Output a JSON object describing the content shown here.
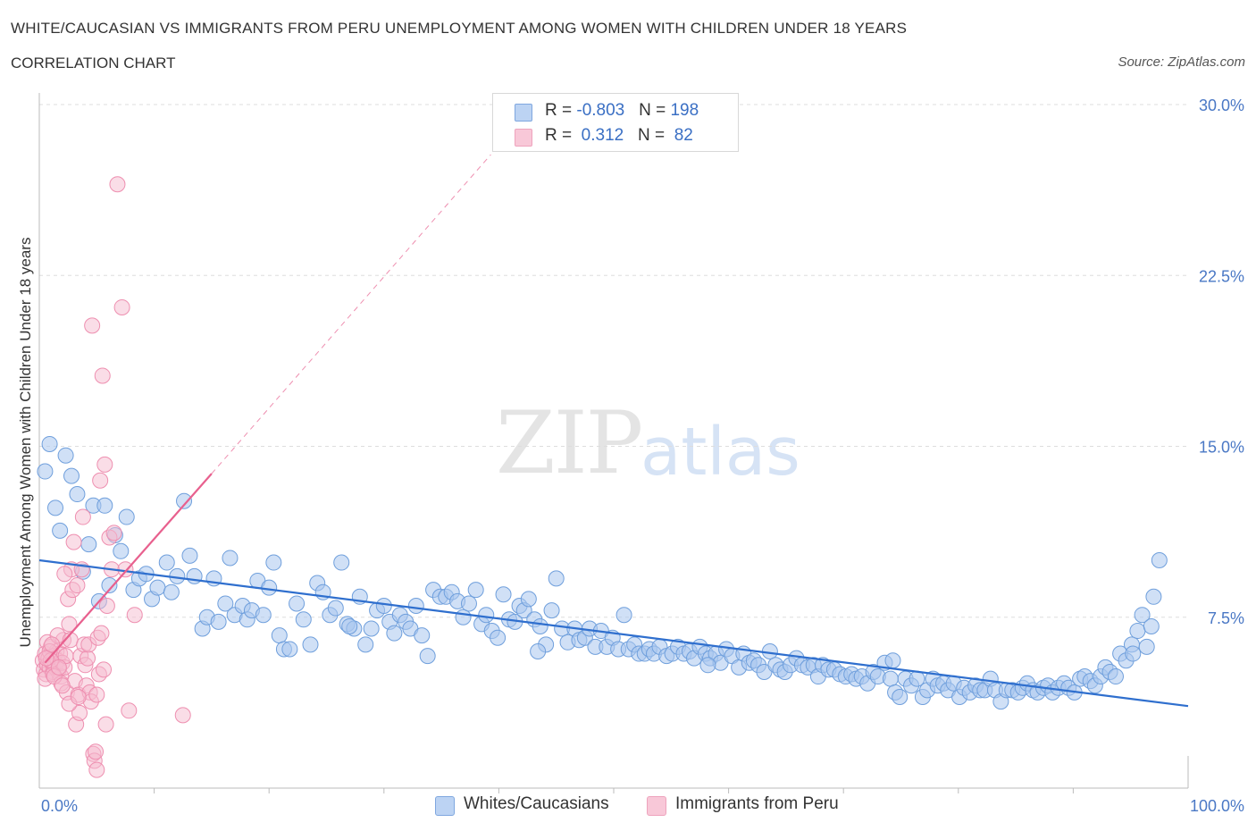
{
  "header": {
    "title": "WHITE/CAUCASIAN VS IMMIGRANTS FROM PERU UNEMPLOYMENT AMONG WOMEN WITH CHILDREN UNDER 18 YEARS",
    "subtitle": "CORRELATION CHART",
    "source": "Source: ZipAtlas.com"
  },
  "legend_box": {
    "rows": [
      {
        "r_label": "R = ",
        "r_value": "-0.803",
        "n_label": "N = ",
        "n_value": "198"
      },
      {
        "r_label": "R = ",
        "r_value": " 0.312",
        "n_label": "N = ",
        "n_value": " 82"
      }
    ]
  },
  "bottom_legend": {
    "series1": "Whites/Caucasians",
    "series2": "Immigrants from Peru"
  },
  "watermark": {
    "part1": "ZIP",
    "part2": "atlas"
  },
  "colors": {
    "blue_fill": "#a9c6ee",
    "blue_stroke": "#6f9fdc",
    "blue_line": "#2f6fce",
    "pink_fill": "#f6bcd0",
    "pink_stroke": "#ee8fb0",
    "pink_line": "#e8608e",
    "grid": "#dddddd",
    "tick_text": "#4a78c5"
  },
  "chart_data": {
    "type": "scatter",
    "title": "WHITE/CAUCASIAN VS IMMIGRANTS FROM PERU UNEMPLOYMENT AMONG WOMEN WITH CHILDREN UNDER 18 YEARS",
    "xlabel": "",
    "ylabel": "Unemployment Among Women with Children Under 18 years",
    "xlim": [
      0,
      100
    ],
    "ylim": [
      0,
      30
    ],
    "x_tick_labels": [
      "0.0%",
      "100.0%"
    ],
    "y_ticks": [
      7.5,
      15.0,
      22.5,
      30.0
    ],
    "y_tick_labels": [
      "7.5%",
      "15.0%",
      "22.5%",
      "30.0%"
    ],
    "grid": true,
    "legend_placement": "bottom-center",
    "series": [
      {
        "name": "Whites/Caucasians",
        "R": -0.803,
        "N": 198,
        "trend": {
          "x": [
            0,
            100
          ],
          "y": [
            10.0,
            3.6
          ]
        },
        "points": [
          [
            0.5,
            13.9
          ],
          [
            0.9,
            15.1
          ],
          [
            1.4,
            12.3
          ],
          [
            1.8,
            11.3
          ],
          [
            2.3,
            14.6
          ],
          [
            2.8,
            13.7
          ],
          [
            3.3,
            12.9
          ],
          [
            3.8,
            9.5
          ],
          [
            4.3,
            10.7
          ],
          [
            4.7,
            12.4
          ],
          [
            5.2,
            8.2
          ],
          [
            5.7,
            12.4
          ],
          [
            6.1,
            8.9
          ],
          [
            6.6,
            11.1
          ],
          [
            7.1,
            10.4
          ],
          [
            7.6,
            11.9
          ],
          [
            8.2,
            8.7
          ],
          [
            8.7,
            9.2
          ],
          [
            9.3,
            9.4
          ],
          [
            9.8,
            8.3
          ],
          [
            10.3,
            8.8
          ],
          [
            11.1,
            9.9
          ],
          [
            11.5,
            8.6
          ],
          [
            12.0,
            9.3
          ],
          [
            12.6,
            12.6
          ],
          [
            13.1,
            10.2
          ],
          [
            13.5,
            9.3
          ],
          [
            14.2,
            7.0
          ],
          [
            14.6,
            7.5
          ],
          [
            15.2,
            9.2
          ],
          [
            15.6,
            7.3
          ],
          [
            16.2,
            8.1
          ],
          [
            16.6,
            10.1
          ],
          [
            17.0,
            7.6
          ],
          [
            17.7,
            8.0
          ],
          [
            18.1,
            7.4
          ],
          [
            18.5,
            7.8
          ],
          [
            19.0,
            9.1
          ],
          [
            19.5,
            7.6
          ],
          [
            20.0,
            8.8
          ],
          [
            20.4,
            9.9
          ],
          [
            20.9,
            6.7
          ],
          [
            21.3,
            6.1
          ],
          [
            21.8,
            6.1
          ],
          [
            22.4,
            8.1
          ],
          [
            23.0,
            7.4
          ],
          [
            23.6,
            6.3
          ],
          [
            24.2,
            9.0
          ],
          [
            24.7,
            8.6
          ],
          [
            25.3,
            7.6
          ],
          [
            25.8,
            7.9
          ],
          [
            26.3,
            9.9
          ],
          [
            26.8,
            7.2
          ],
          [
            27.4,
            7.0
          ],
          [
            27.9,
            8.4
          ],
          [
            28.4,
            6.3
          ],
          [
            28.9,
            7.0
          ],
          [
            29.4,
            7.8
          ],
          [
            30.0,
            8.0
          ],
          [
            30.5,
            7.3
          ],
          [
            30.9,
            6.8
          ],
          [
            31.4,
            7.6
          ],
          [
            31.9,
            7.3
          ],
          [
            32.3,
            7.0
          ],
          [
            32.8,
            8.0
          ],
          [
            33.3,
            6.7
          ],
          [
            33.8,
            5.8
          ],
          [
            34.3,
            8.7
          ],
          [
            34.9,
            8.4
          ],
          [
            35.4,
            8.4
          ],
          [
            35.9,
            8.6
          ],
          [
            36.4,
            8.2
          ],
          [
            36.9,
            7.5
          ],
          [
            37.4,
            8.1
          ],
          [
            38.0,
            8.7
          ],
          [
            38.5,
            7.2
          ],
          [
            38.9,
            7.6
          ],
          [
            39.4,
            6.9
          ],
          [
            39.9,
            6.6
          ],
          [
            40.4,
            8.5
          ],
          [
            40.9,
            7.4
          ],
          [
            41.4,
            7.3
          ],
          [
            41.8,
            8.0
          ],
          [
            42.2,
            7.8
          ],
          [
            42.6,
            8.3
          ],
          [
            43.1,
            7.4
          ],
          [
            43.6,
            7.1
          ],
          [
            44.1,
            6.3
          ],
          [
            44.6,
            7.8
          ],
          [
            45.0,
            9.2
          ],
          [
            45.5,
            7.0
          ],
          [
            46.0,
            6.4
          ],
          [
            46.6,
            7.0
          ],
          [
            47.0,
            6.5
          ],
          [
            47.5,
            6.6
          ],
          [
            47.9,
            7.0
          ],
          [
            48.4,
            6.2
          ],
          [
            48.9,
            6.9
          ],
          [
            49.4,
            6.2
          ],
          [
            49.9,
            6.6
          ],
          [
            50.4,
            6.1
          ],
          [
            50.9,
            7.6
          ],
          [
            51.3,
            6.1
          ],
          [
            51.8,
            6.3
          ],
          [
            52.2,
            5.9
          ],
          [
            52.7,
            5.9
          ],
          [
            53.1,
            6.1
          ],
          [
            53.5,
            5.9
          ],
          [
            54.0,
            6.2
          ],
          [
            54.6,
            5.8
          ],
          [
            55.1,
            5.9
          ],
          [
            55.6,
            6.2
          ],
          [
            56.1,
            5.9
          ],
          [
            56.6,
            6.0
          ],
          [
            57.0,
            5.7
          ],
          [
            57.5,
            6.2
          ],
          [
            58.0,
            5.9
          ],
          [
            58.4,
            5.7
          ],
          [
            58.9,
            5.9
          ],
          [
            59.3,
            5.5
          ],
          [
            59.8,
            6.1
          ],
          [
            60.3,
            5.8
          ],
          [
            60.9,
            5.3
          ],
          [
            61.3,
            5.9
          ],
          [
            61.8,
            5.5
          ],
          [
            62.2,
            5.6
          ],
          [
            62.6,
            5.4
          ],
          [
            63.1,
            5.1
          ],
          [
            63.6,
            6.0
          ],
          [
            64.1,
            5.4
          ],
          [
            64.5,
            5.2
          ],
          [
            64.9,
            5.1
          ],
          [
            65.4,
            5.4
          ],
          [
            65.9,
            5.7
          ],
          [
            66.4,
            5.4
          ],
          [
            66.9,
            5.3
          ],
          [
            67.4,
            5.4
          ],
          [
            67.8,
            4.9
          ],
          [
            68.2,
            5.4
          ],
          [
            68.7,
            5.2
          ],
          [
            69.2,
            5.2
          ],
          [
            69.7,
            5.0
          ],
          [
            70.2,
            4.9
          ],
          [
            70.7,
            5.0
          ],
          [
            71.1,
            4.8
          ],
          [
            71.6,
            4.9
          ],
          [
            72.1,
            4.6
          ],
          [
            72.6,
            5.1
          ],
          [
            73.0,
            4.9
          ],
          [
            73.6,
            5.5
          ],
          [
            74.1,
            4.8
          ],
          [
            74.5,
            4.2
          ],
          [
            74.9,
            4.0
          ],
          [
            75.4,
            4.8
          ],
          [
            75.9,
            4.5
          ],
          [
            76.4,
            4.8
          ],
          [
            76.9,
            4.0
          ],
          [
            77.3,
            4.3
          ],
          [
            77.8,
            4.8
          ],
          [
            78.2,
            4.5
          ],
          [
            78.7,
            4.6
          ],
          [
            79.1,
            4.3
          ],
          [
            79.6,
            4.6
          ],
          [
            80.1,
            4.0
          ],
          [
            80.5,
            4.4
          ],
          [
            81.0,
            4.2
          ],
          [
            81.5,
            4.5
          ],
          [
            81.9,
            4.3
          ],
          [
            82.3,
            4.3
          ],
          [
            82.8,
            4.8
          ],
          [
            83.2,
            4.3
          ],
          [
            83.7,
            3.8
          ],
          [
            84.2,
            4.3
          ],
          [
            84.7,
            4.3
          ],
          [
            85.2,
            4.2
          ],
          [
            85.6,
            4.4
          ],
          [
            86.0,
            4.6
          ],
          [
            86.5,
            4.3
          ],
          [
            86.9,
            4.2
          ],
          [
            87.4,
            4.4
          ],
          [
            87.8,
            4.5
          ],
          [
            88.2,
            4.2
          ],
          [
            88.7,
            4.4
          ],
          [
            89.2,
            4.6
          ],
          [
            89.6,
            4.4
          ],
          [
            90.1,
            4.2
          ],
          [
            90.6,
            4.8
          ],
          [
            91.0,
            4.9
          ],
          [
            91.5,
            4.7
          ],
          [
            91.9,
            4.5
          ],
          [
            92.4,
            4.9
          ],
          [
            92.8,
            5.3
          ],
          [
            93.2,
            5.1
          ],
          [
            93.7,
            4.9
          ],
          [
            94.1,
            5.9
          ],
          [
            94.6,
            5.6
          ],
          [
            95.1,
            6.3
          ],
          [
            95.6,
            6.9
          ],
          [
            96.0,
            7.6
          ],
          [
            96.4,
            6.2
          ],
          [
            97.0,
            8.4
          ],
          [
            97.5,
            10.0
          ],
          [
            96.8,
            7.1
          ],
          [
            95.2,
            5.9
          ],
          [
            74.3,
            5.6
          ],
          [
            58.2,
            5.4
          ],
          [
            43.4,
            6.0
          ],
          [
            27.0,
            7.1
          ]
        ]
      },
      {
        "name": "Immigrants from Peru",
        "R": 0.312,
        "N": 82,
        "trend": {
          "x": [
            0.5,
            15.0
          ],
          "y": [
            5.5,
            13.8
          ]
        },
        "trend_extension": {
          "x": [
            15.0,
            39.3
          ],
          "y": [
            13.8,
            27.8
          ]
        },
        "points": [
          [
            0.3,
            5.6
          ],
          [
            0.4,
            5.2
          ],
          [
            0.5,
            5.9
          ],
          [
            0.6,
            5.0
          ],
          [
            0.7,
            5.4
          ],
          [
            0.8,
            5.7
          ],
          [
            0.9,
            5.3
          ],
          [
            1.0,
            6.2
          ],
          [
            1.1,
            5.5
          ],
          [
            1.2,
            5.1
          ],
          [
            1.3,
            5.8
          ],
          [
            1.4,
            5.4
          ],
          [
            1.5,
            6.0
          ],
          [
            1.6,
            5.6
          ],
          [
            1.7,
            5.2
          ],
          [
            1.8,
            5.9
          ],
          [
            1.9,
            4.9
          ],
          [
            2.0,
            5.5
          ],
          [
            2.1,
            6.5
          ],
          [
            2.2,
            5.3
          ],
          [
            0.5,
            4.8
          ],
          [
            0.7,
            6.4
          ],
          [
            0.9,
            6.0
          ],
          [
            1.2,
            5.0
          ],
          [
            1.6,
            6.7
          ],
          [
            1.9,
            4.6
          ],
          [
            2.3,
            5.8
          ],
          [
            2.4,
            4.2
          ],
          [
            2.5,
            8.3
          ],
          [
            2.6,
            7.2
          ],
          [
            2.7,
            6.5
          ],
          [
            2.8,
            9.6
          ],
          [
            2.9,
            8.7
          ],
          [
            3.0,
            10.8
          ],
          [
            3.1,
            4.7
          ],
          [
            3.2,
            2.8
          ],
          [
            3.3,
            8.9
          ],
          [
            3.4,
            4.1
          ],
          [
            3.5,
            3.3
          ],
          [
            3.6,
            5.8
          ],
          [
            3.7,
            9.6
          ],
          [
            3.8,
            11.9
          ],
          [
            3.9,
            6.3
          ],
          [
            4.0,
            5.4
          ],
          [
            4.1,
            4.5
          ],
          [
            4.2,
            5.7
          ],
          [
            4.3,
            6.3
          ],
          [
            4.4,
            4.2
          ],
          [
            4.5,
            3.8
          ],
          [
            4.6,
            20.3
          ],
          [
            4.7,
            1.5
          ],
          [
            4.8,
            1.2
          ],
          [
            4.9,
            1.6
          ],
          [
            5.0,
            0.8
          ],
          [
            5.1,
            6.6
          ],
          [
            5.2,
            5.0
          ],
          [
            5.3,
            13.5
          ],
          [
            5.4,
            6.8
          ],
          [
            5.5,
            18.1
          ],
          [
            5.6,
            5.2
          ],
          [
            5.7,
            14.2
          ],
          [
            5.8,
            2.8
          ],
          [
            5.9,
            8.0
          ],
          [
            6.1,
            11.0
          ],
          [
            6.3,
            9.6
          ],
          [
            6.5,
            11.2
          ],
          [
            6.8,
            26.5
          ],
          [
            7.2,
            21.1
          ],
          [
            7.5,
            9.6
          ],
          [
            7.8,
            3.4
          ],
          [
            8.3,
            7.6
          ],
          [
            12.5,
            3.2
          ],
          [
            1.0,
            5.6
          ],
          [
            1.3,
            4.9
          ],
          [
            1.7,
            5.3
          ],
          [
            2.0,
            4.5
          ],
          [
            0.6,
            5.7
          ],
          [
            1.1,
            6.3
          ],
          [
            2.6,
            3.7
          ],
          [
            3.4,
            4.0
          ],
          [
            5.0,
            4.1
          ],
          [
            2.2,
            9.4
          ]
        ]
      }
    ]
  }
}
